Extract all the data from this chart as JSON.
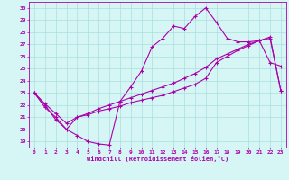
{
  "xlabel": "Windchill (Refroidissement éolien,°C)",
  "bg_color": "#d6f5f5",
  "grid_color": "#aadddd",
  "line_color": "#aa00aa",
  "xlim": [
    -0.5,
    23.5
  ],
  "ylim": [
    18.5,
    30.5
  ],
  "xticks": [
    0,
    1,
    2,
    3,
    4,
    5,
    6,
    7,
    8,
    9,
    10,
    11,
    12,
    13,
    14,
    15,
    16,
    17,
    18,
    19,
    20,
    21,
    22,
    23
  ],
  "yticks": [
    19,
    20,
    21,
    22,
    23,
    24,
    25,
    26,
    27,
    28,
    29,
    30
  ],
  "line1_x": [
    0,
    1,
    2,
    3,
    4,
    5,
    6,
    7,
    8,
    9,
    10,
    11,
    12,
    13,
    14,
    15,
    16,
    17,
    18,
    19,
    20,
    21,
    22,
    23
  ],
  "line1_y": [
    23.0,
    22.0,
    20.8,
    20.0,
    19.5,
    19.0,
    18.8,
    18.7,
    22.3,
    23.5,
    24.8,
    26.8,
    27.5,
    28.5,
    28.3,
    29.3,
    30.0,
    28.8,
    27.5,
    27.2,
    27.2,
    27.3,
    25.5,
    25.2
  ],
  "line2_x": [
    0,
    1,
    2,
    3,
    4,
    5,
    6,
    7,
    8,
    9,
    10,
    11,
    12,
    13,
    14,
    15,
    16,
    17,
    18,
    19,
    20,
    21,
    22,
    23
  ],
  "line2_y": [
    23.0,
    21.8,
    21.0,
    20.0,
    21.0,
    21.2,
    21.5,
    21.7,
    21.9,
    22.2,
    22.4,
    22.6,
    22.8,
    23.1,
    23.4,
    23.7,
    24.2,
    25.5,
    26.0,
    26.5,
    26.9,
    27.3,
    27.5,
    23.2
  ],
  "line3_x": [
    0,
    1,
    2,
    3,
    4,
    5,
    6,
    7,
    8,
    9,
    10,
    11,
    12,
    13,
    14,
    15,
    16,
    17,
    18,
    19,
    20,
    21,
    22,
    23
  ],
  "line3_y": [
    23.0,
    22.1,
    21.3,
    20.5,
    21.0,
    21.3,
    21.7,
    22.0,
    22.3,
    22.6,
    22.9,
    23.2,
    23.5,
    23.8,
    24.2,
    24.6,
    25.1,
    25.8,
    26.2,
    26.6,
    27.0,
    27.3,
    27.6,
    23.2
  ]
}
